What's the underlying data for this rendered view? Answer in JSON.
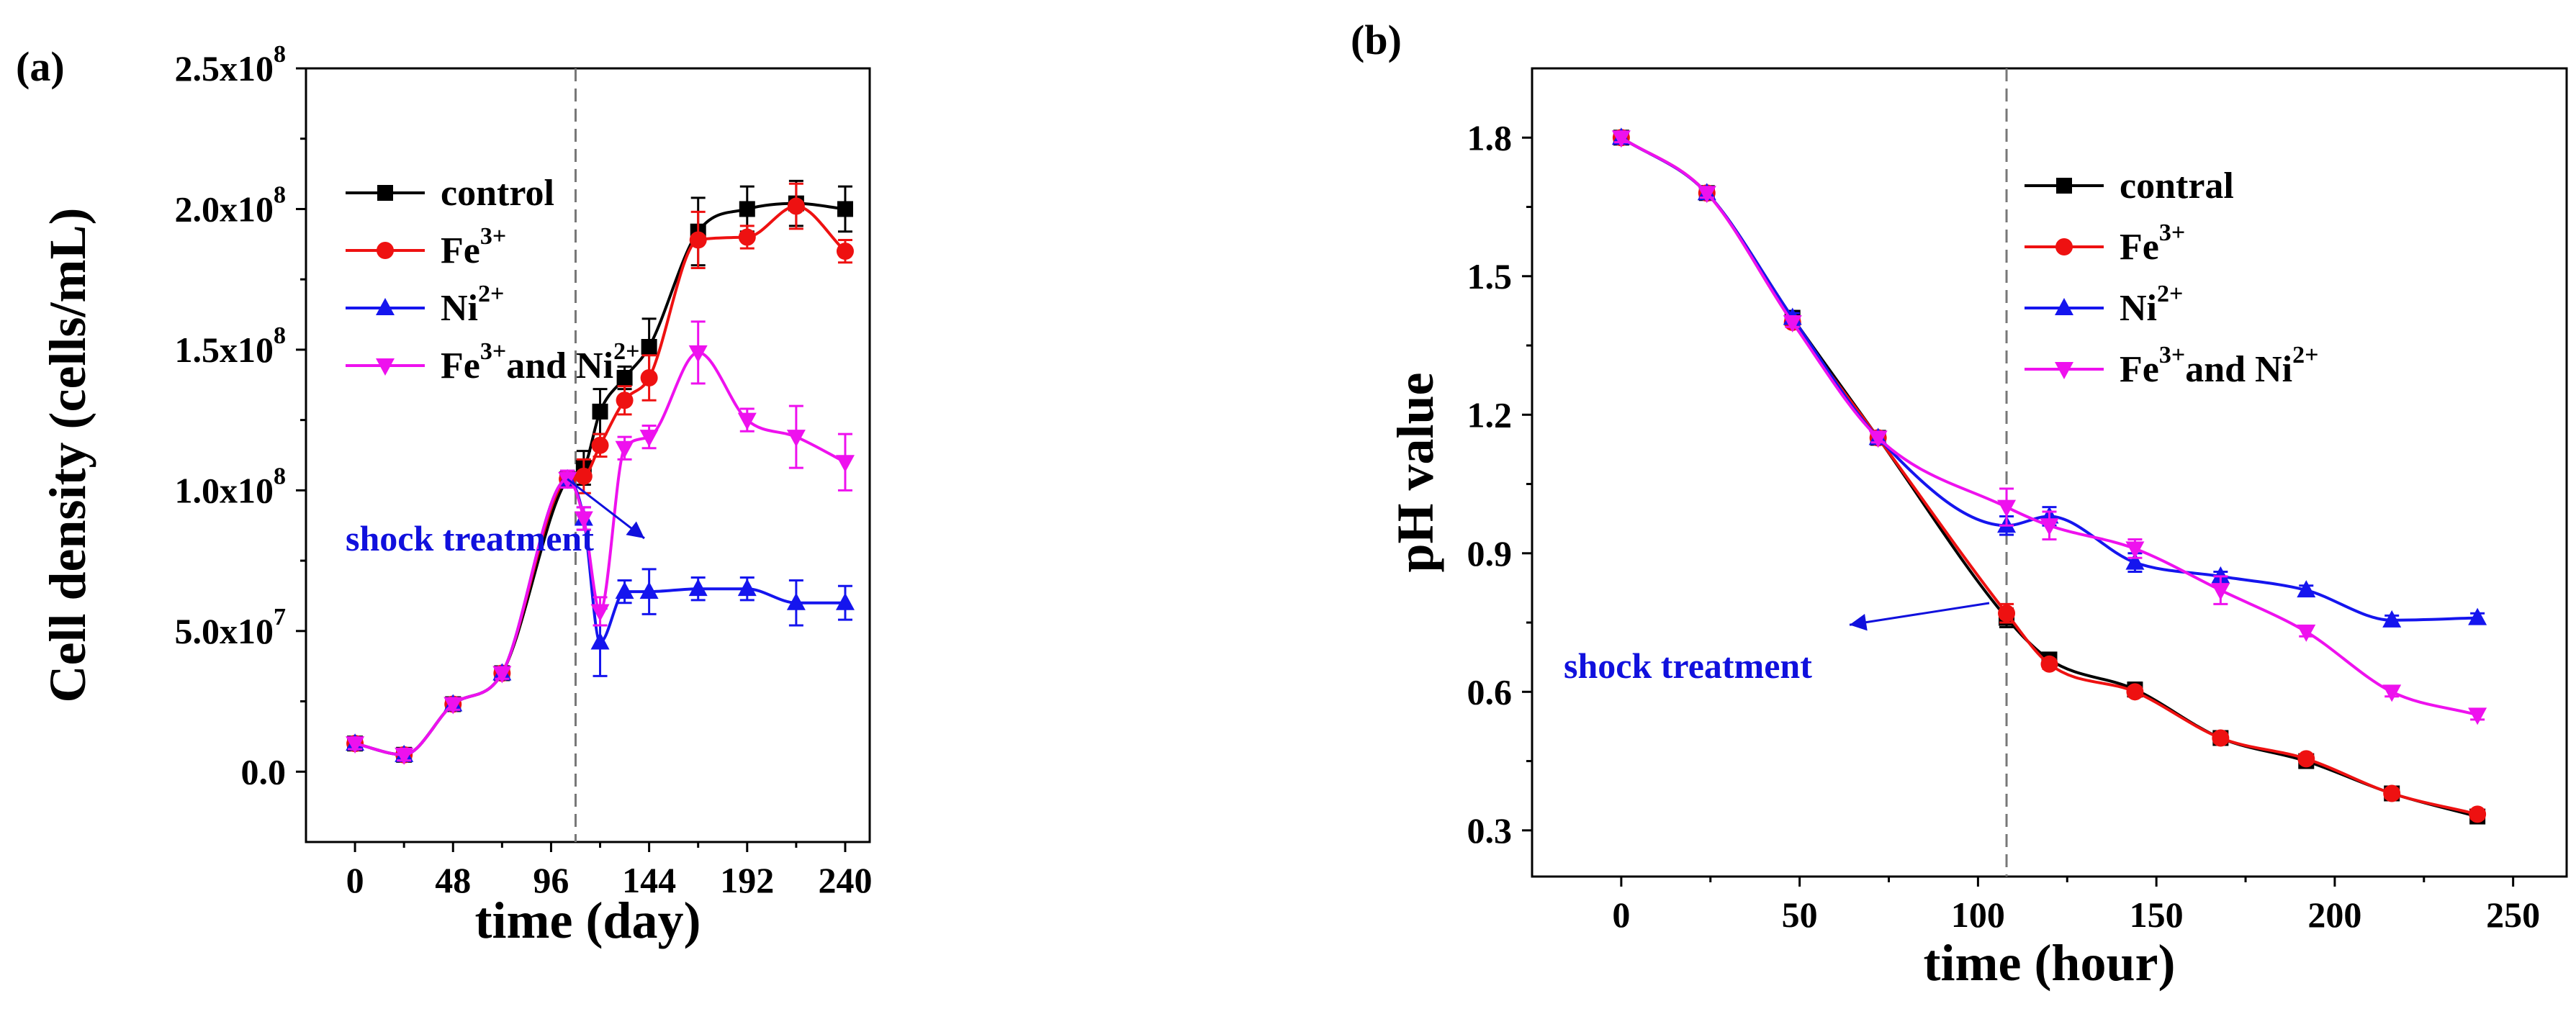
{
  "chart_data": [
    {
      "panel": "(a)",
      "type": "line",
      "xlabel": "time (day)",
      "ylabel": "Cell density (cells/mL)",
      "xlim": [
        -24,
        252
      ],
      "ylim": [
        -25000000.0,
        250000000.0
      ],
      "xticks": [
        0,
        48,
        96,
        144,
        192,
        240
      ],
      "yticks": [
        {
          "v": 0.0,
          "m": "0.0",
          "e": ""
        },
        {
          "v": 50000000.0,
          "m": "5.0x10",
          "e": "7"
        },
        {
          "v": 100000000.0,
          "m": "1.0x10",
          "e": "8"
        },
        {
          "v": 150000000.0,
          "m": "1.5x10",
          "e": "8"
        },
        {
          "v": 200000000.0,
          "m": "2.0x10",
          "e": "8"
        },
        {
          "v": 250000000.0,
          "m": "2.5x10",
          "e": "8"
        }
      ],
      "vline_x": 108,
      "annotation": {
        "text": "shock treatment",
        "target_x": 104,
        "target_y": 104000000.0
      },
      "legend": [
        {
          "base": "control",
          "sup": "",
          "tail": "",
          "tailsup": ""
        },
        {
          "base": "Fe",
          "sup": "3+",
          "tail": "",
          "tailsup": ""
        },
        {
          "base": "Ni",
          "sup": "2+",
          "tail": "",
          "tailsup": ""
        },
        {
          "base": "Fe",
          "sup": "3+",
          "tail": "and Ni",
          "tailsup": "2+"
        }
      ],
      "series": [
        {
          "name": "control",
          "color": "#000000",
          "marker": "square",
          "x": [
            0,
            24,
            48,
            72,
            104,
            112,
            120,
            132,
            144,
            168,
            192,
            216,
            240
          ],
          "y": [
            10000000.0,
            6000000.0,
            24000000.0,
            35000000.0,
            104000000.0,
            108000000.0,
            128000000.0,
            140000000.0,
            151000000.0,
            192000000.0,
            200000000.0,
            202000000.0,
            200000000.0
          ],
          "err": [
            2000000.0,
            2000000.0,
            2000000.0,
            2000000.0,
            3000000.0,
            6000000.0,
            8000000.0,
            4000000.0,
            10000000.0,
            12000000.0,
            8000000.0,
            8000000.0,
            8000000.0
          ]
        },
        {
          "name": "Fe3+",
          "color": "#ee1111",
          "marker": "circle",
          "x": [
            0,
            24,
            48,
            72,
            104,
            112,
            120,
            132,
            144,
            168,
            192,
            216,
            240
          ],
          "y": [
            10000000.0,
            6000000.0,
            24000000.0,
            35000000.0,
            104000000.0,
            105000000.0,
            116000000.0,
            132000000.0,
            140000000.0,
            189000000.0,
            190000000.0,
            201000000.0,
            185000000.0
          ],
          "err": [
            2000000.0,
            2000000.0,
            2000000.0,
            2000000.0,
            3000000.0,
            6000000.0,
            4000000.0,
            5000000.0,
            8000000.0,
            10000000.0,
            4000000.0,
            8000000.0,
            4000000.0
          ]
        },
        {
          "name": "Ni2+",
          "color": "#1515ee",
          "marker": "triangle-up",
          "x": [
            0,
            24,
            48,
            72,
            104,
            112,
            120,
            132,
            144,
            168,
            192,
            216,
            240
          ],
          "y": [
            10000000.0,
            6000000.0,
            24000000.0,
            35000000.0,
            104000000.0,
            90000000.0,
            46000000.0,
            64000000.0,
            64000000.0,
            65000000.0,
            65000000.0,
            60000000.0,
            60000000.0
          ],
          "err": [
            2000000.0,
            2000000.0,
            2000000.0,
            2000000.0,
            3000000.0,
            4000000.0,
            12000000.0,
            4000000.0,
            8000000.0,
            4000000.0,
            4000000.0,
            8000000.0,
            6000000.0
          ]
        },
        {
          "name": "Fe3+ and Ni2+",
          "color": "#ee11ee",
          "marker": "triangle-down",
          "x": [
            0,
            24,
            48,
            72,
            104,
            112,
            120,
            132,
            144,
            168,
            192,
            216,
            240
          ],
          "y": [
            10000000.0,
            6000000.0,
            24000000.0,
            35000000.0,
            104000000.0,
            90000000.0,
            57000000.0,
            115000000.0,
            119000000.0,
            149000000.0,
            125000000.0,
            119000000.0,
            110000000.0
          ],
          "err": [
            2000000.0,
            2000000.0,
            2000000.0,
            2000000.0,
            3000000.0,
            4000000.0,
            5000000.0,
            4000000.0,
            4000000.0,
            11000000.0,
            4000000.0,
            11000000.0,
            10000000.0
          ]
        }
      ]
    },
    {
      "panel": "(b)",
      "type": "line",
      "xlabel": "time (hour)",
      "ylabel": "pH value",
      "xlim": [
        -25,
        265
      ],
      "ylim": [
        0.2,
        1.95
      ],
      "xticks": [
        0,
        50,
        100,
        150,
        200,
        250
      ],
      "yticks": [
        {
          "v": 0.3,
          "m": "0.3",
          "e": ""
        },
        {
          "v": 0.6,
          "m": "0.6",
          "e": ""
        },
        {
          "v": 0.9,
          "m": "0.9",
          "e": ""
        },
        {
          "v": 1.2,
          "m": "1.2",
          "e": ""
        },
        {
          "v": 1.5,
          "m": "1.5",
          "e": ""
        },
        {
          "v": 1.8,
          "m": "1.8",
          "e": ""
        }
      ],
      "vline_x": 108,
      "annotation": {
        "text": "shock treatment",
        "target_x": 64,
        "target_y": 0.745
      },
      "legend": [
        {
          "base": "contral",
          "sup": "",
          "tail": "",
          "tailsup": ""
        },
        {
          "base": "Fe",
          "sup": "3+",
          "tail": "",
          "tailsup": ""
        },
        {
          "base": "Ni",
          "sup": "2+",
          "tail": "",
          "tailsup": ""
        },
        {
          "base": "Fe",
          "sup": "3+",
          "tail": "and Ni",
          "tailsup": "2+"
        }
      ],
      "series": [
        {
          "name": "contral",
          "color": "#000000",
          "marker": "square",
          "x": [
            0,
            24,
            48,
            72,
            108,
            120,
            144,
            168,
            192,
            216,
            240
          ],
          "y": [
            1.8,
            1.68,
            1.41,
            1.15,
            0.76,
            0.67,
            0.605,
            0.5,
            0.45,
            0.38,
            0.33
          ],
          "err": [
            0.01,
            0.01,
            0.01,
            0.01,
            0.02,
            0.01,
            0.015,
            0.01,
            0.01,
            0.01,
            0.01
          ]
        },
        {
          "name": "Fe3+",
          "color": "#ee1111",
          "marker": "circle",
          "x": [
            0,
            24,
            48,
            72,
            108,
            120,
            144,
            168,
            192,
            216,
            240
          ],
          "y": [
            1.8,
            1.68,
            1.4,
            1.15,
            0.77,
            0.66,
            0.6,
            0.5,
            0.455,
            0.38,
            0.335
          ],
          "err": [
            0.01,
            0.01,
            0.01,
            0.01,
            0.02,
            0.01,
            0.01,
            0.01,
            0.01,
            0.01,
            0.01
          ]
        },
        {
          "name": "Ni2+",
          "color": "#1515ee",
          "marker": "triangle-up",
          "x": [
            0,
            24,
            48,
            72,
            108,
            120,
            144,
            168,
            192,
            216,
            240
          ],
          "y": [
            1.8,
            1.68,
            1.41,
            1.15,
            0.96,
            0.98,
            0.88,
            0.85,
            0.82,
            0.755,
            0.76
          ],
          "err": [
            0.01,
            0.01,
            0.01,
            0.01,
            0.02,
            0.02,
            0.02,
            0.01,
            0.01,
            0.01,
            0.01
          ]
        },
        {
          "name": "Fe3+ and Ni2+",
          "color": "#ee11ee",
          "marker": "triangle-down",
          "x": [
            0,
            24,
            48,
            72,
            108,
            120,
            144,
            168,
            192,
            216,
            240
          ],
          "y": [
            1.8,
            1.68,
            1.4,
            1.15,
            1.0,
            0.96,
            0.91,
            0.82,
            0.73,
            0.6,
            0.55
          ],
          "err": [
            0.01,
            0.01,
            0.01,
            0.01,
            0.04,
            0.03,
            0.02,
            0.03,
            0.01,
            0.01,
            0.01
          ]
        }
      ]
    }
  ]
}
